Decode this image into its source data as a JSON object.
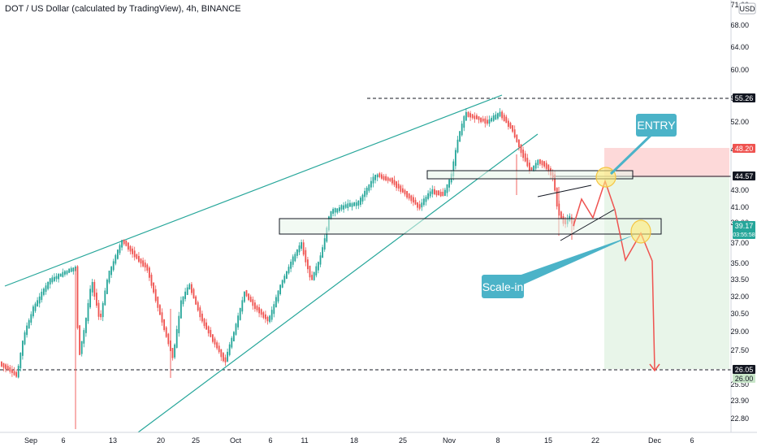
{
  "header": {
    "title": "DOT / US Dollar (calculated by TradingView), 4h, BINANCE",
    "currency": "USD"
  },
  "colors": {
    "up": "#26a69a",
    "down": "#ef5350",
    "trend": "#26a69a",
    "projection": "#ef5350",
    "callout": "#4bb3c8",
    "stop_zone": "#fdd9d9",
    "target_zone": "#e8f5e9"
  },
  "chart_data": {
    "type": "candlestick",
    "symbol": "DOT / US Dollar",
    "interval": "4h",
    "exchange": "BINANCE",
    "y_ticks": [
      "71.00",
      "68.00",
      "64.00",
      "60.00",
      "56.00",
      "52.00",
      "48.00",
      "43.00",
      "41.00",
      "39.00",
      "37.00",
      "35.00",
      "33.50",
      "32.00",
      "30.50",
      "29.00",
      "27.50",
      "25.50",
      "23.90",
      "22.80"
    ],
    "x_ticks": [
      "Sep",
      "6",
      "13",
      "20",
      "25",
      "Oct",
      "6",
      "11",
      "18",
      "25",
      "Nov",
      "8",
      "15",
      "22",
      "Dec",
      "6"
    ],
    "price_tags": [
      {
        "value": "55.26",
        "style": "dark"
      },
      {
        "value": "48.20",
        "style": "red"
      },
      {
        "value": "44.57",
        "style": "dark"
      },
      {
        "value": "39.17",
        "style": "green",
        "countdown": "03:55:58"
      },
      {
        "value": "26.05",
        "style": "dark"
      },
      {
        "value": "26.00",
        "style": "lightgreen"
      }
    ],
    "levels": [
      55.26,
      26.05
    ],
    "zones": [
      {
        "label": "entry-zone",
        "from": 44.0,
        "to": 45.1
      },
      {
        "label": "scale-in-zone",
        "from": 37.8,
        "to": 39.6
      }
    ],
    "annotations": [
      "ENTRY",
      "Scale-in"
    ],
    "projection": [
      {
        "x": "Nov 21",
        "y": 42.9
      },
      {
        "x": "Nov 23",
        "y": 40.2
      },
      {
        "x": "Nov 25",
        "y": 44.9
      },
      {
        "x": "Nov 27",
        "y": 41.0
      },
      {
        "x": "Nov 28",
        "y": 35.3
      },
      {
        "x": "Nov 30",
        "y": 38.4
      },
      {
        "x": "Dec 1",
        "y": 35.6
      },
      {
        "x": "Dec 1",
        "y": 26.05
      }
    ],
    "grid": false
  }
}
